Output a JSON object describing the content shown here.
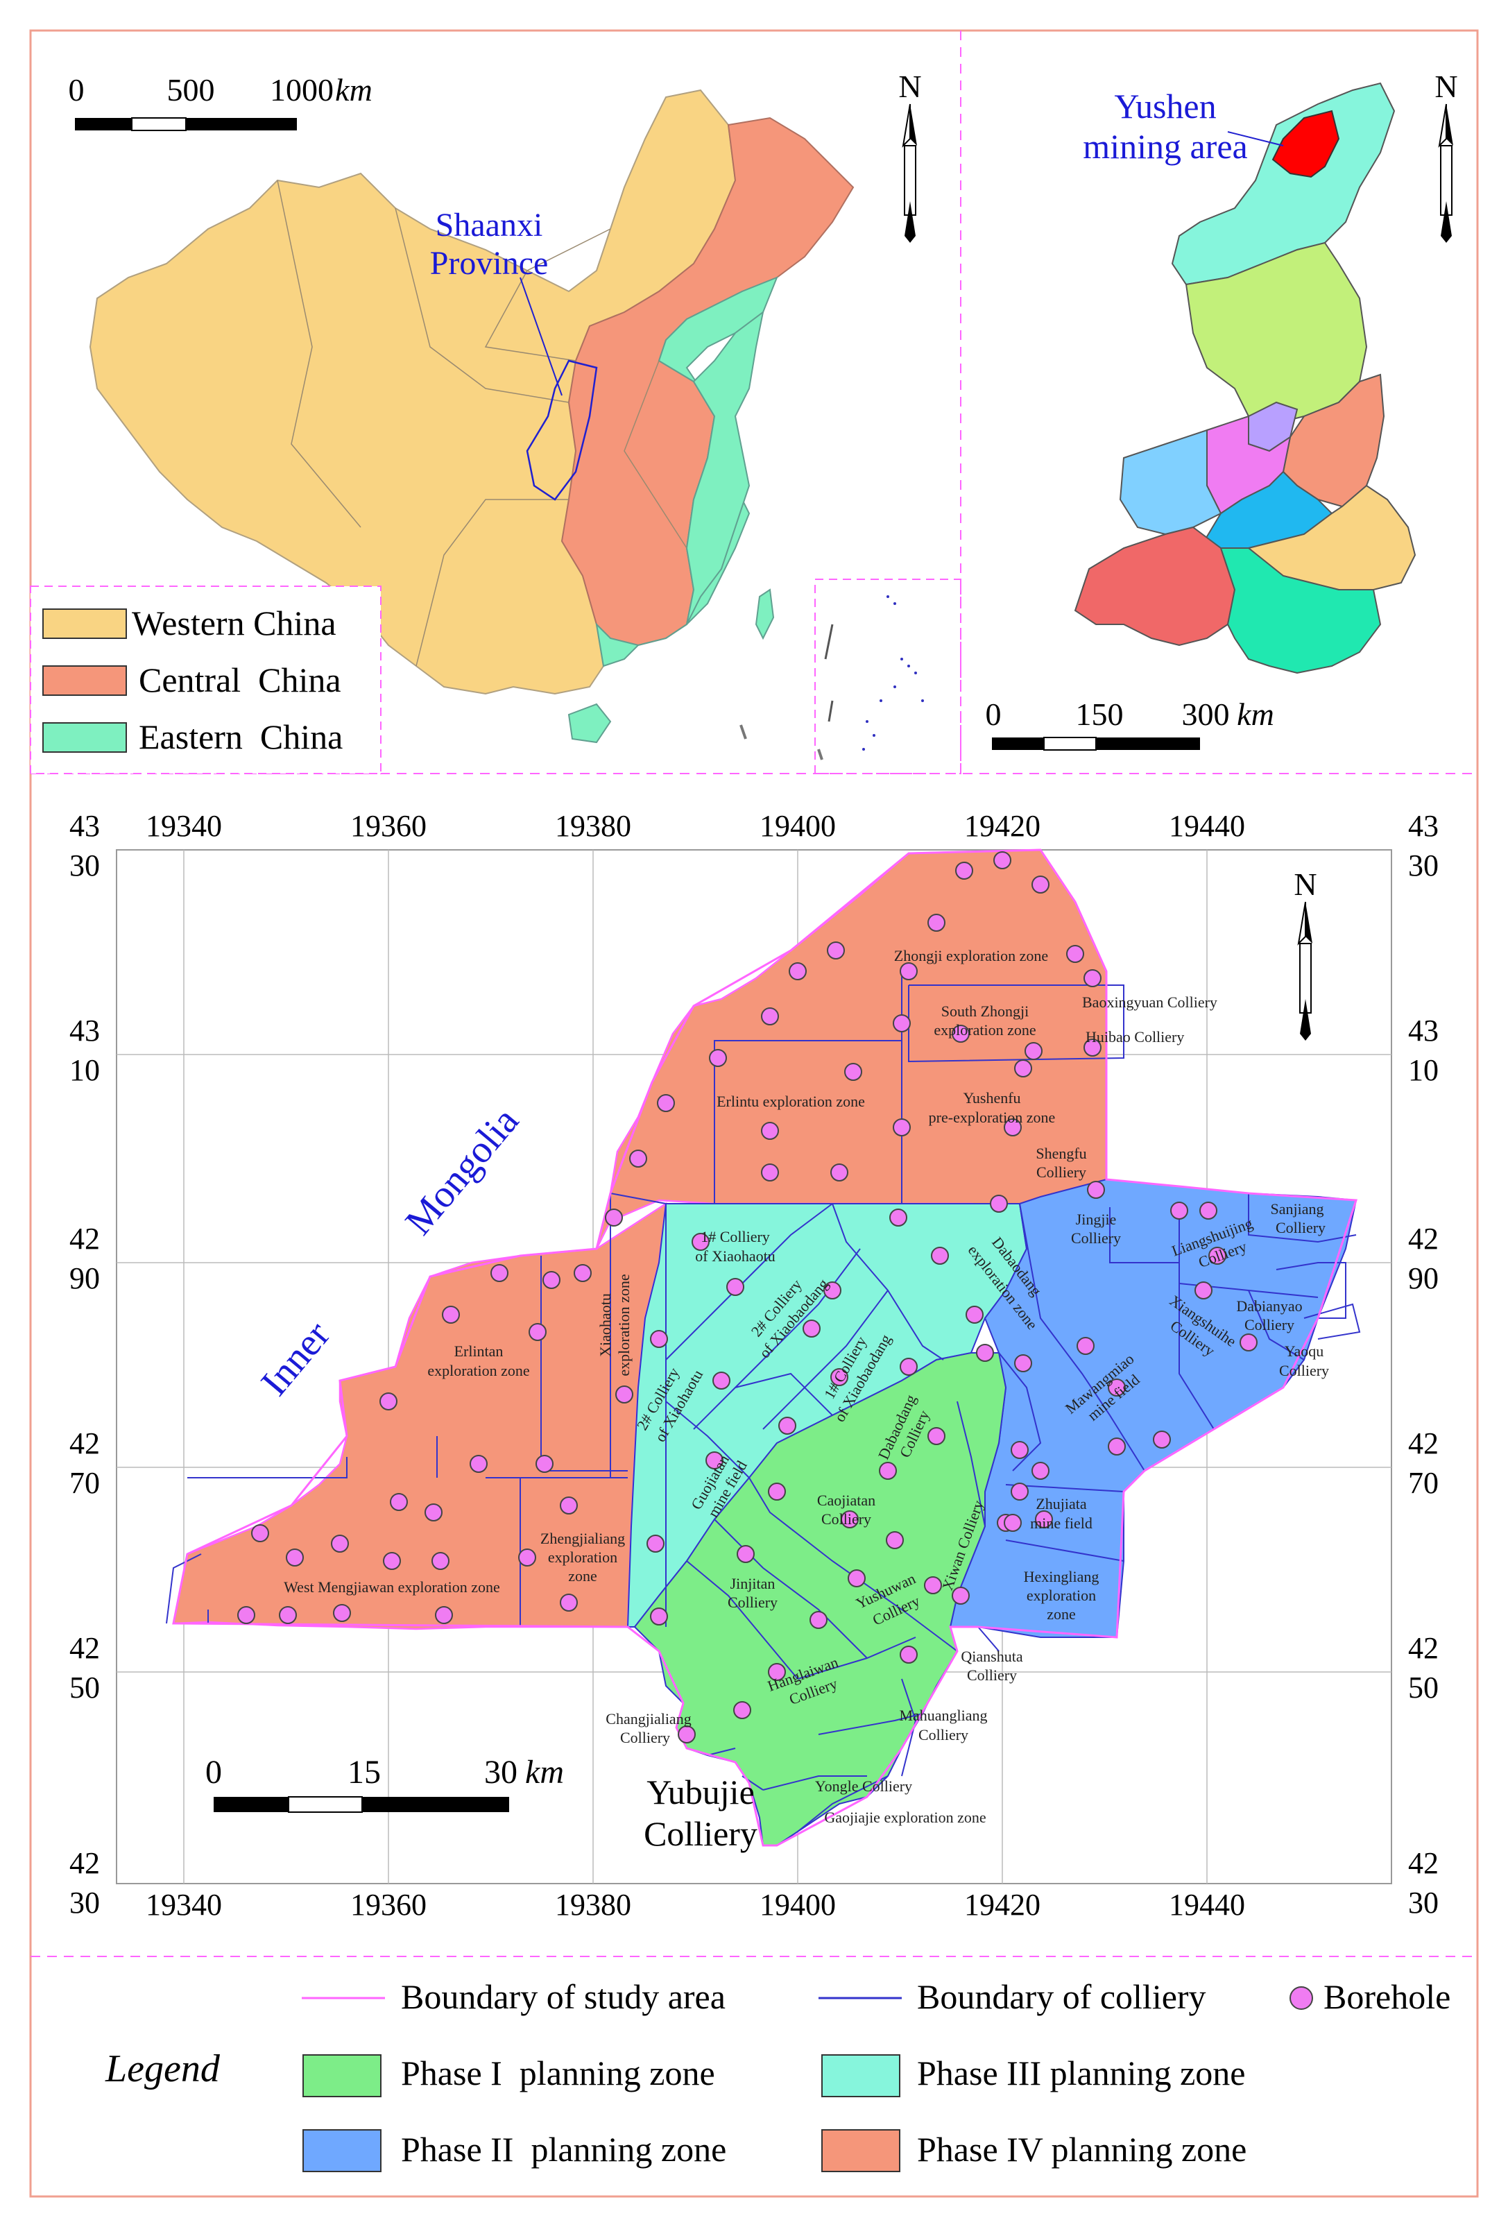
{
  "colors": {
    "western": "#f9d483",
    "central": "#f5967a",
    "eastern": "#7ef0c0",
    "phase1": "#7ded88",
    "phase2": "#6fa8ff",
    "phase3": "#86f5dc",
    "phase4": "#f5967a",
    "borehole": "#f07cf2",
    "yushen": "#ff0000",
    "boundary_study": "#ff66ff",
    "boundary_colliery": "#3333cc",
    "label_blue": "#1a1ad6",
    "frame": "#f0a090"
  },
  "china_map": {
    "scale": {
      "t0": "0",
      "t1": "500",
      "t2": "1000",
      "unit": "km"
    },
    "north": "N",
    "shaanxi_label_l1": "Shaanxi",
    "shaanxi_label_l2": "Province",
    "legend": [
      {
        "label": "Western China",
        "color_key": "western"
      },
      {
        "label": "Central  China",
        "color_key": "central"
      },
      {
        "label": "Eastern  China",
        "color_key": "eastern"
      }
    ]
  },
  "shaanxi_map": {
    "north": "N",
    "yushen_l1": "Yushen",
    "yushen_l2": "mining area",
    "scale": {
      "t0": "0",
      "t1": "150",
      "t2": "300",
      "unit": "km"
    }
  },
  "main_map": {
    "north": "N",
    "x_ticks": [
      "19340",
      "19360",
      "19380",
      "19400",
      "19420",
      "19440"
    ],
    "y_ticks": [
      [
        "43",
        "30"
      ],
      [
        "43",
        "10"
      ],
      [
        "42",
        "90"
      ],
      [
        "42",
        "70"
      ],
      [
        "42",
        "50"
      ],
      [
        "42",
        "30"
      ]
    ],
    "inner_mongolia_1": "Inner",
    "inner_mongolia_2": "Mongolia",
    "scale": {
      "t0": "0",
      "t1": "15",
      "t2": "30",
      "unit": "km"
    },
    "yubujie_l1": "Yubujie",
    "yubujie_l2": "Colliery",
    "zones": [
      {
        "l1": "Zhongji exploration zone",
        "l2": ""
      },
      {
        "l1": "South Zhongji",
        "l2": "exploration zone"
      },
      {
        "l1": "Baoxingyuan Colliery",
        "l2": ""
      },
      {
        "l1": "Huibao Colliery",
        "l2": ""
      },
      {
        "l1": "Erlintu exploration zone",
        "l2": ""
      },
      {
        "l1": "Yushenfu",
        "l2": "pre-exploration zone"
      },
      {
        "l1": "Shengfu",
        "l2": "Colliery"
      },
      {
        "l1": "1# Colliery",
        "l2": "of Xiaohaotu"
      },
      {
        "l1": "Jingjie",
        "l2": "Colliery"
      },
      {
        "l1": "Liangshuijing",
        "l2": "Colliery"
      },
      {
        "l1": "Sanjiang",
        "l2": "Colliery"
      },
      {
        "l1": "Erlintan",
        "l2": "exploration zone"
      },
      {
        "l1": "Xiaohaotu",
        "l2": "exploration zone"
      },
      {
        "l1": "2# Colliery",
        "l2": "of Xiaobaodang"
      },
      {
        "l1": "Dabaodang",
        "l2": "exploration zone"
      },
      {
        "l1": "Dabianyao",
        "l2": "Colliery"
      },
      {
        "l1": "Xiangshuihe",
        "l2": "Colliery"
      },
      {
        "l1": "Yaoqu",
        "l2": "Colliery"
      },
      {
        "l1": "1# Colliery",
        "l2": "of Xiaobaodang"
      },
      {
        "l1": "2# Colliery",
        "l2": "of Xiaohaotu"
      },
      {
        "l1": "Mawangmiao",
        "l2": "mine field"
      },
      {
        "l1": "Dabaodang",
        "l2": "Colliery"
      },
      {
        "l1": "Guojiatan",
        "l2": "mine field"
      },
      {
        "l1": "Caojiatan",
        "l2": "Colliery"
      },
      {
        "l1": "Zhujiata",
        "l2": "mine field"
      },
      {
        "l1": "Zhengjialiang",
        "l2": "exploration"
      },
      {
        "l1": "West Mengjiawan exploration zone",
        "l2": ""
      },
      {
        "l1": "Xiwan Colliery",
        "l2": ""
      },
      {
        "l1": "Jinjitan",
        "l2": "Colliery"
      },
      {
        "l1": "Yushuwan",
        "l2": "Colliery"
      },
      {
        "l1": "Hexingliang",
        "l2": "exploration"
      },
      {
        "l1": "Qianshuta",
        "l2": "Colliery"
      },
      {
        "l1": "Hanglaiwan",
        "l2": "Colliery"
      },
      {
        "l1": "Changjialiang",
        "l2": "Colliery"
      },
      {
        "l1": "Mahuangliang",
        "l2": "Colliery"
      },
      {
        "l1": "Yongle Colliery",
        "l2": ""
      },
      {
        "l1": "Gaojiajie exploration zone",
        "l2": ""
      }
    ],
    "zone_extra": {
      "zhengjialiang_l3": "zone",
      "hexingliang_l3": "zone"
    }
  },
  "legend": {
    "title": "Legend",
    "boundary_study": "Boundary of study area",
    "boundary_colliery": "Boundary of colliery",
    "borehole": "Borehole",
    "phase1": "Phase I  planning zone",
    "phase2": "Phase II  planning zone",
    "phase3": "Phase III planning zone",
    "phase4": "Phase IV planning zone"
  }
}
